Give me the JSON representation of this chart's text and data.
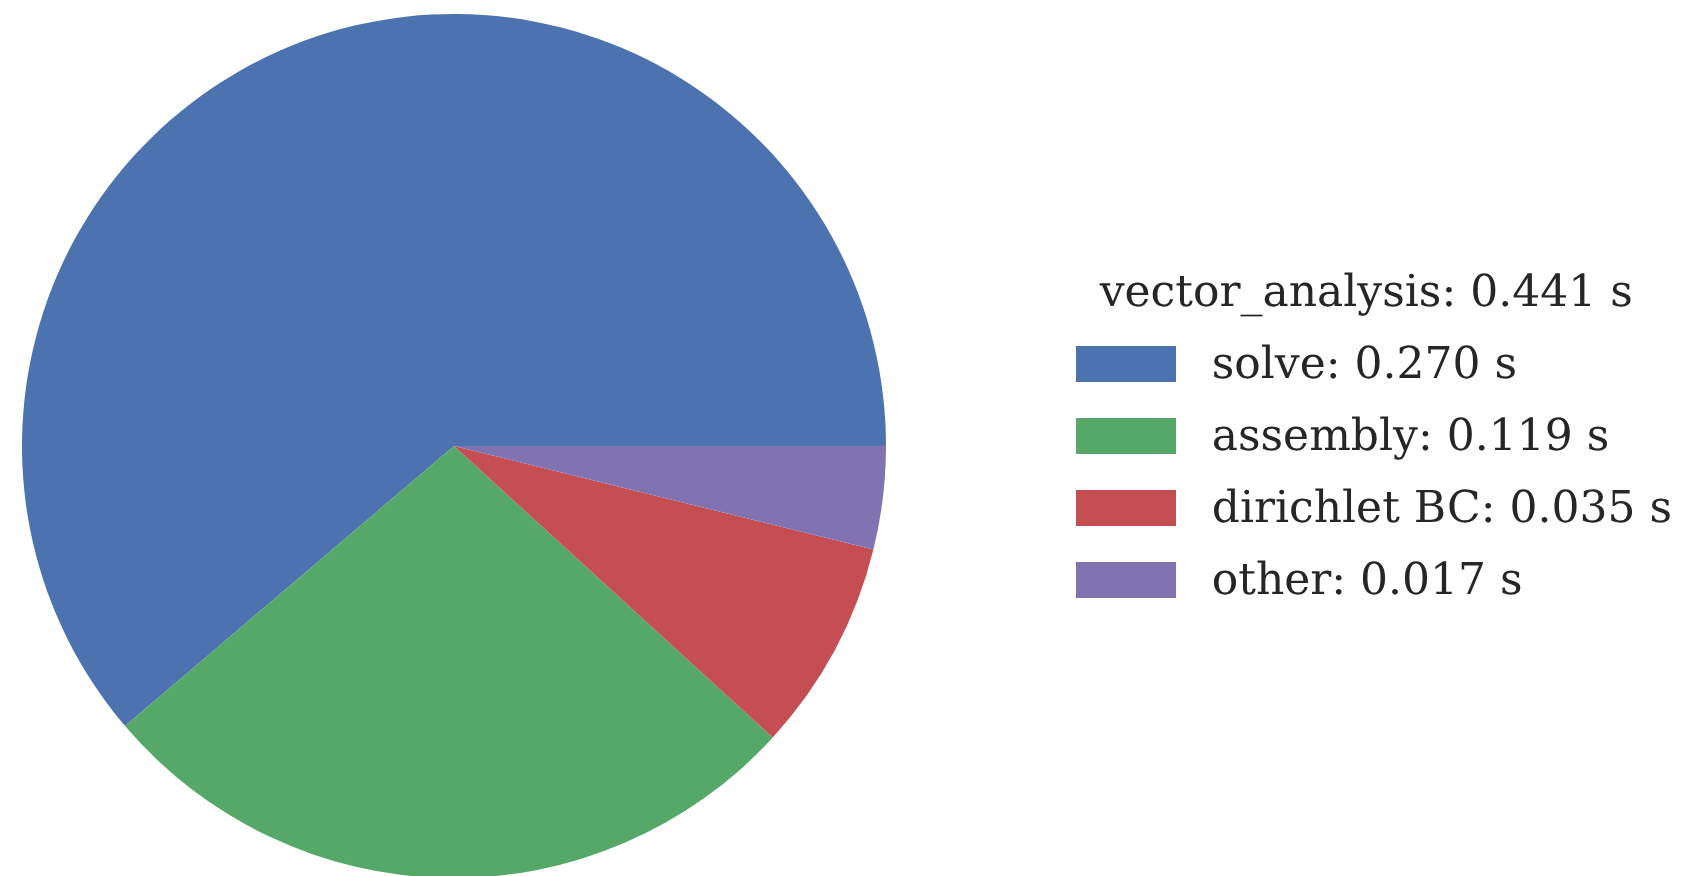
{
  "chart_data": {
    "type": "pie",
    "legend_title": "vector_analysis: 0.441 s",
    "categories": [
      "solve: 0.270 s",
      "assembly: 0.119 s",
      "dirichlet BC: 0.035 s",
      "other: 0.017 s"
    ],
    "values": [
      0.27,
      0.119,
      0.035,
      0.017
    ],
    "colors": [
      "#4c72b0",
      "#55a868",
      "#c44e52",
      "#8172b2"
    ],
    "legend": "right"
  }
}
